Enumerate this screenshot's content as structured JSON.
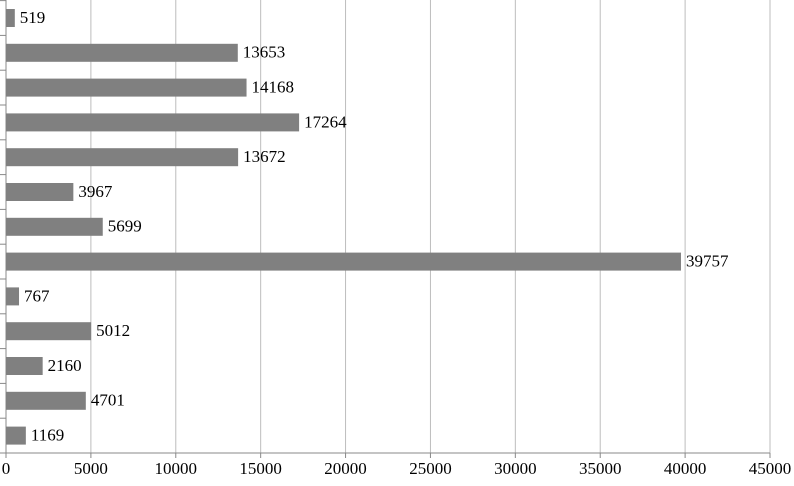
{
  "chart_data": {
    "type": "bar",
    "orientation": "horizontal",
    "categories": [
      null,
      null,
      null,
      null,
      null,
      null,
      null,
      null,
      null,
      null,
      null,
      null,
      null
    ],
    "values": [
      519,
      13653,
      14168,
      17264,
      13672,
      3967,
      5699,
      39757,
      767,
      5012,
      2160,
      4701,
      1169
    ],
    "color": "#808080",
    "xlim": [
      0,
      45000
    ],
    "xticks": [
      0,
      5000,
      10000,
      15000,
      20000,
      25000,
      30000,
      35000,
      40000,
      45000
    ],
    "grid": true,
    "data_labels": true
  }
}
